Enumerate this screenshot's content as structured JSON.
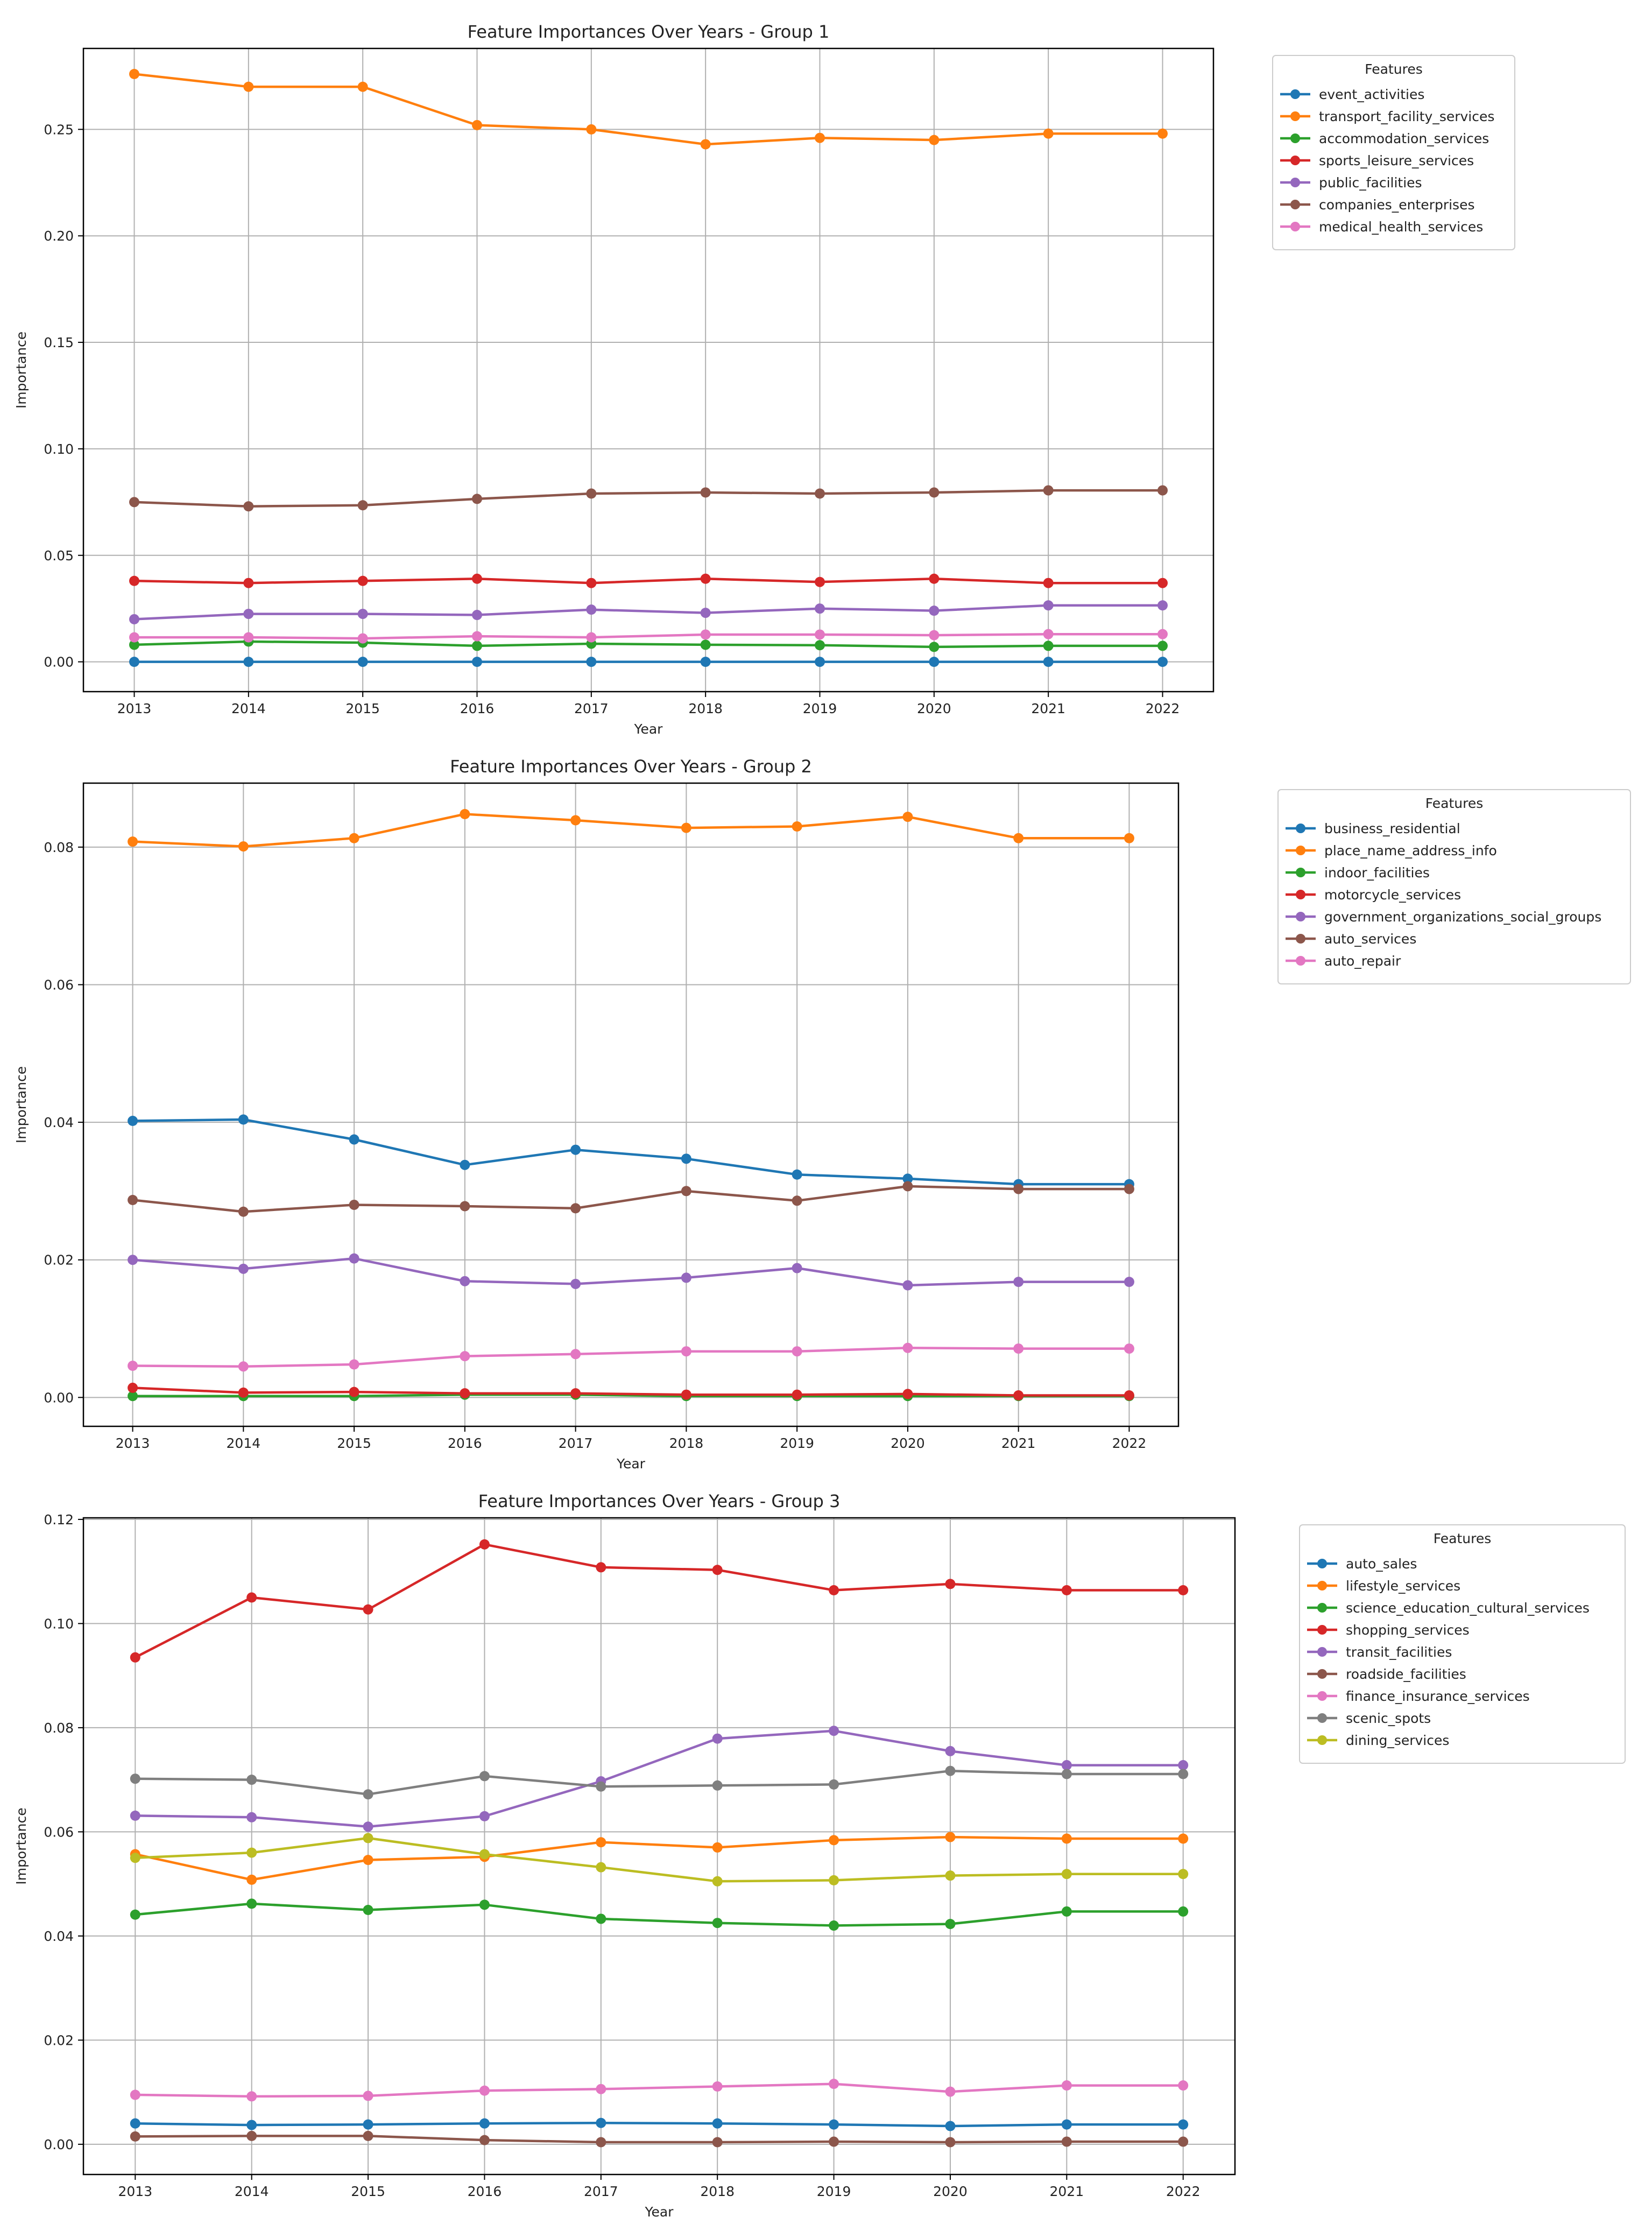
{
  "chart_data": [
    {
      "type": "line",
      "title": "Feature Importances Over Years - Group 1",
      "xlabel": "Year",
      "ylabel": "Importance",
      "x": [
        2013,
        2014,
        2015,
        2016,
        2017,
        2018,
        2019,
        2020,
        2021,
        2022
      ],
      "yticks": [
        "0.00",
        "0.05",
        "0.10",
        "0.15",
        "0.20",
        "0.25"
      ],
      "ylim": [
        -0.014,
        0.288
      ],
      "grid": true,
      "legend_title": "Features",
      "legend_position": "outside-top-right",
      "series": [
        {
          "name": "event_activities",
          "color": "#1f77b4",
          "values": [
            0.0,
            0.0,
            0.0,
            0.0,
            0.0,
            0.0,
            0.0,
            0.0,
            0.0,
            0.0
          ]
        },
        {
          "name": "transport_facility_services",
          "color": "#ff7f0e",
          "values": [
            0.276,
            0.27,
            0.27,
            0.252,
            0.25,
            0.243,
            0.246,
            0.245,
            0.248,
            0.248
          ]
        },
        {
          "name": "accommodation_services",
          "color": "#2ca02c",
          "values": [
            0.008,
            0.0095,
            0.009,
            0.0075,
            0.0085,
            0.008,
            0.0078,
            0.007,
            0.0075,
            0.0075
          ]
        },
        {
          "name": "sports_leisure_services",
          "color": "#d62728",
          "values": [
            0.038,
            0.037,
            0.038,
            0.039,
            0.037,
            0.039,
            0.0375,
            0.039,
            0.037,
            0.037
          ]
        },
        {
          "name": "public_facilities",
          "color": "#9467bd",
          "values": [
            0.02,
            0.0225,
            0.0225,
            0.022,
            0.0245,
            0.023,
            0.025,
            0.024,
            0.0265,
            0.0265
          ]
        },
        {
          "name": "companies_enterprises",
          "color": "#8c564b",
          "values": [
            0.075,
            0.073,
            0.0735,
            0.0765,
            0.079,
            0.0795,
            0.079,
            0.0795,
            0.0805,
            0.0805
          ]
        },
        {
          "name": "medical_health_services",
          "color": "#e377c2",
          "values": [
            0.0115,
            0.0115,
            0.011,
            0.012,
            0.0115,
            0.0128,
            0.0128,
            0.0125,
            0.013,
            0.013
          ]
        }
      ]
    },
    {
      "type": "line",
      "title": "Feature Importances Over Years - Group 2",
      "xlabel": "Year",
      "ylabel": "Importance",
      "x": [
        2013,
        2014,
        2015,
        2016,
        2017,
        2018,
        2019,
        2020,
        2021,
        2022
      ],
      "yticks": [
        "0.00",
        "0.02",
        "0.04",
        "0.06",
        "0.08"
      ],
      "ylim": [
        -0.0042,
        0.0893
      ],
      "grid": true,
      "legend_title": "Features",
      "legend_position": "outside-top-right",
      "series": [
        {
          "name": "business_residential",
          "color": "#1f77b4",
          "values": [
            0.0402,
            0.0404,
            0.0375,
            0.0338,
            0.036,
            0.0347,
            0.0324,
            0.0318,
            0.031,
            0.031
          ]
        },
        {
          "name": "place_name_address_info",
          "color": "#ff7f0e",
          "values": [
            0.0808,
            0.0801,
            0.0813,
            0.0848,
            0.0839,
            0.0828,
            0.083,
            0.0844,
            0.0813,
            0.0813
          ]
        },
        {
          "name": "indoor_facilities",
          "color": "#2ca02c",
          "values": [
            0.0002,
            0.0002,
            0.0002,
            0.0004,
            0.0004,
            0.0002,
            0.0002,
            0.0002,
            0.0002,
            0.0002
          ]
        },
        {
          "name": "motorcycle_services",
          "color": "#d62728",
          "values": [
            0.0014,
            0.0007,
            0.0008,
            0.0006,
            0.0006,
            0.0004,
            0.0004,
            0.0005,
            0.0003,
            0.0003
          ]
        },
        {
          "name": "government_organizations_social_groups",
          "color": "#9467bd",
          "values": [
            0.02,
            0.0187,
            0.0202,
            0.0169,
            0.0165,
            0.0174,
            0.0188,
            0.0163,
            0.0168,
            0.0168
          ]
        },
        {
          "name": "auto_services",
          "color": "#8c564b",
          "values": [
            0.0287,
            0.027,
            0.028,
            0.0278,
            0.0275,
            0.03,
            0.0286,
            0.0307,
            0.0303,
            0.0303
          ]
        },
        {
          "name": "auto_repair",
          "color": "#e377c2",
          "values": [
            0.0046,
            0.0045,
            0.0048,
            0.006,
            0.0063,
            0.0067,
            0.0067,
            0.0072,
            0.0071,
            0.0071
          ]
        }
      ]
    },
    {
      "type": "line",
      "title": "Feature Importances Over Years - Group 3",
      "xlabel": "Year",
      "ylabel": "Importance",
      "x": [
        2013,
        2014,
        2015,
        2016,
        2017,
        2018,
        2019,
        2020,
        2021,
        2022
      ],
      "yticks": [
        "0.00",
        "0.02",
        "0.04",
        "0.06",
        "0.08",
        "0.10",
        "0.12"
      ],
      "ylim": [
        -0.0058,
        0.1203
      ],
      "grid": true,
      "legend_title": "Features",
      "legend_position": "outside-top-right",
      "series": [
        {
          "name": "auto_sales",
          "color": "#1f77b4",
          "values": [
            0.004,
            0.0037,
            0.0038,
            0.004,
            0.0041,
            0.004,
            0.0038,
            0.0035,
            0.0038,
            0.0038
          ]
        },
        {
          "name": "lifestyle_services",
          "color": "#ff7f0e",
          "values": [
            0.0557,
            0.0508,
            0.0546,
            0.0552,
            0.058,
            0.057,
            0.0584,
            0.059,
            0.0587,
            0.0587
          ]
        },
        {
          "name": "science_education_cultural_services",
          "color": "#2ca02c",
          "values": [
            0.0441,
            0.0462,
            0.045,
            0.046,
            0.0433,
            0.0425,
            0.042,
            0.0423,
            0.0447,
            0.0447
          ]
        },
        {
          "name": "shopping_services",
          "color": "#d62728",
          "values": [
            0.0935,
            0.105,
            0.1027,
            0.1152,
            0.1108,
            0.1103,
            0.1064,
            0.1076,
            0.1064,
            0.1064
          ]
        },
        {
          "name": "transit_facilities",
          "color": "#9467bd",
          "values": [
            0.0631,
            0.0628,
            0.061,
            0.063,
            0.0697,
            0.0779,
            0.0794,
            0.0755,
            0.0728,
            0.0728
          ]
        },
        {
          "name": "roadside_facilities",
          "color": "#8c564b",
          "values": [
            0.0015,
            0.0016,
            0.0016,
            0.0008,
            0.0004,
            0.0004,
            0.0005,
            0.0004,
            0.0005,
            0.0005
          ]
        },
        {
          "name": "finance_insurance_services",
          "color": "#e377c2",
          "values": [
            0.0095,
            0.0092,
            0.0093,
            0.0103,
            0.0106,
            0.0111,
            0.0116,
            0.0101,
            0.0113,
            0.0113
          ]
        },
        {
          "name": "scenic_spots",
          "color": "#7f7f7f",
          "values": [
            0.0702,
            0.07,
            0.0672,
            0.0707,
            0.0687,
            0.0689,
            0.0691,
            0.0717,
            0.0711,
            0.0711
          ]
        },
        {
          "name": "dining_services",
          "color": "#bcbd22",
          "values": [
            0.055,
            0.056,
            0.0588,
            0.0557,
            0.0532,
            0.0505,
            0.0507,
            0.0516,
            0.0519,
            0.0519
          ]
        }
      ]
    }
  ]
}
